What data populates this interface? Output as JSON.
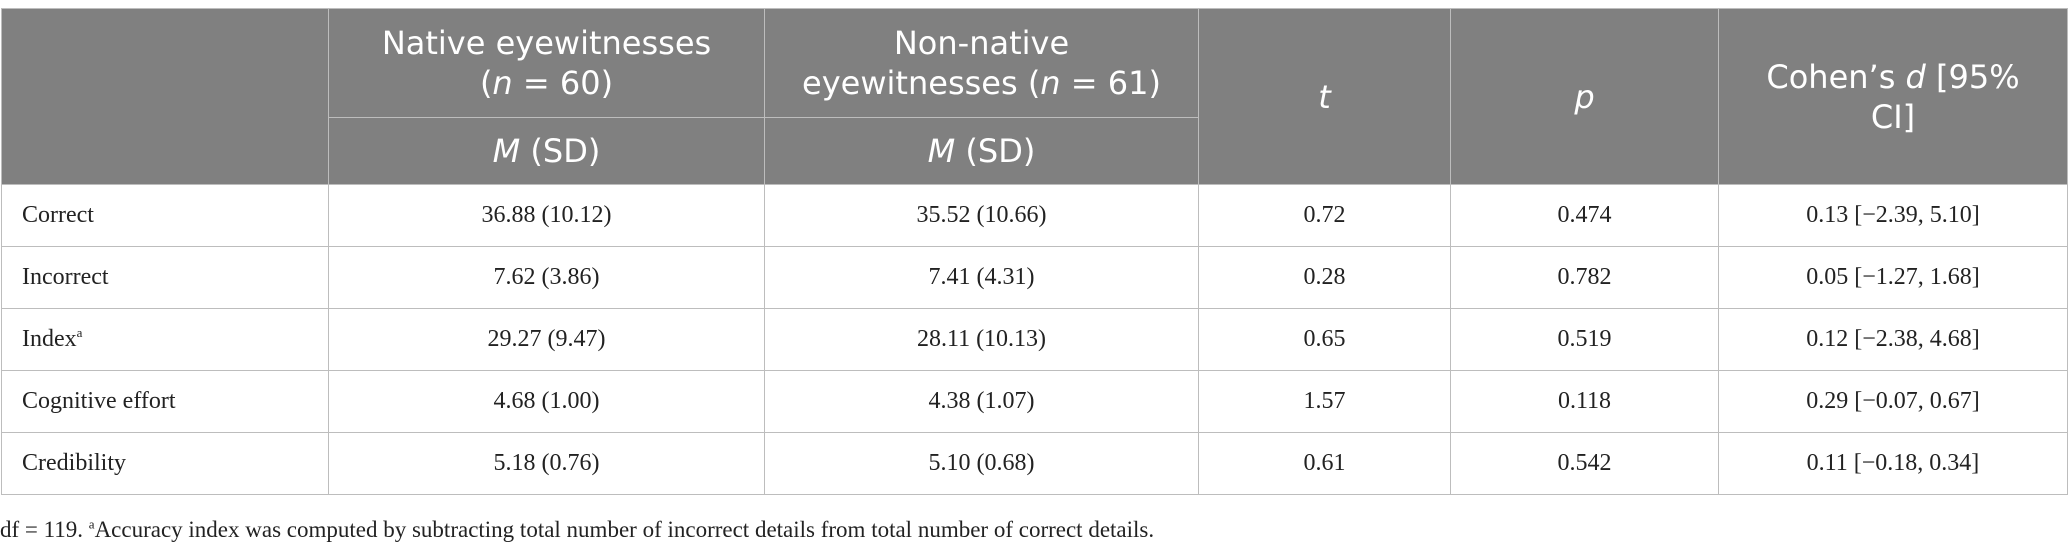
{
  "header": {
    "col_native_line1": "Native eyewitnesses",
    "col_native_n_label": "n",
    "col_native_n_value": " = 60)",
    "col_nonnative_line1": "Non-native",
    "col_nonnative_line2": "eyewitnesses (",
    "col_nonnative_n_label": "n",
    "col_nonnative_n_value": " = 61)",
    "col_t": "t",
    "col_p": "p",
    "col_d_prefix": "Cohen’s ",
    "col_d_italic": "d",
    "col_d_suffix": " [95%",
    "col_d_line2": "CI]",
    "sub_m": "M",
    "sub_sd": " (SD)"
  },
  "rows": [
    {
      "label": "Correct",
      "sup": "",
      "native": "36.88 (10.12)",
      "nonnative": "35.52 (10.66)",
      "t": "0.72",
      "p": "0.474",
      "d": "0.13 [−2.39, 5.10]"
    },
    {
      "label": "Incorrect",
      "sup": "",
      "native": "7.62 (3.86)",
      "nonnative": "7.41 (4.31)",
      "t": "0.28",
      "p": "0.782",
      "d": "0.05 [−1.27, 1.68]"
    },
    {
      "label": "Index",
      "sup": "a",
      "native": "29.27 (9.47)",
      "nonnative": "28.11 (10.13)",
      "t": "0.65",
      "p": "0.519",
      "d": "0.12 [−2.38, 4.68]"
    },
    {
      "label": "Cognitive effort",
      "sup": "",
      "native": "4.68 (1.00)",
      "nonnative": "4.38 (1.07)",
      "t": "1.57",
      "p": "0.118",
      "d": "0.29 [−0.07, 0.67]"
    },
    {
      "label": "Credibility",
      "sup": "",
      "native": "5.18 (0.76)",
      "nonnative": "5.10 (0.68)",
      "t": "0.61",
      "p": "0.542",
      "d": "0.11 [−0.18, 0.34]"
    }
  ],
  "footnote": {
    "df": "df = 119. ",
    "sup": "a",
    "text": "Accuracy index was computed by subtracting total number of incorrect details from total number of correct details."
  }
}
